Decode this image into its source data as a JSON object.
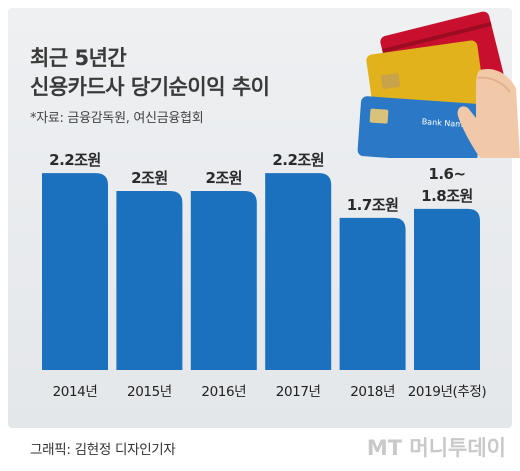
{
  "header": {
    "title_line1": "최근 5년간",
    "title_line2": "신용카드사 당기순이익 추이",
    "source": "*자료: 금융감독원, 여신금융협회"
  },
  "chart_data": {
    "type": "bar",
    "title": "최근 5년간 신용카드사 당기순이익 추이",
    "categories": [
      "2014년",
      "2015년",
      "2016년",
      "2017년",
      "2018년",
      "2019년(추정)"
    ],
    "values": [
      2.2,
      2.0,
      2.0,
      2.2,
      1.7,
      1.8
    ],
    "value_labels": [
      "2.2조원",
      "2조원",
      "2조원",
      "2.2조원",
      "1.7조원",
      "1.8조원"
    ],
    "value_label_prefix": [
      "",
      "",
      "",
      "",
      "",
      "1.6~"
    ],
    "unit": "조원",
    "ylim": [
      0,
      2.5
    ],
    "grid": false,
    "bar_color": "#1b71be"
  },
  "footer": {
    "credit": "그래픽: 김현정 디자인기자",
    "logo": "MT 머니투데이"
  },
  "cards": {
    "card_text": "Bank Name",
    "colors": [
      "#c8102e",
      "#e2b21c",
      "#2a78c6"
    ]
  }
}
